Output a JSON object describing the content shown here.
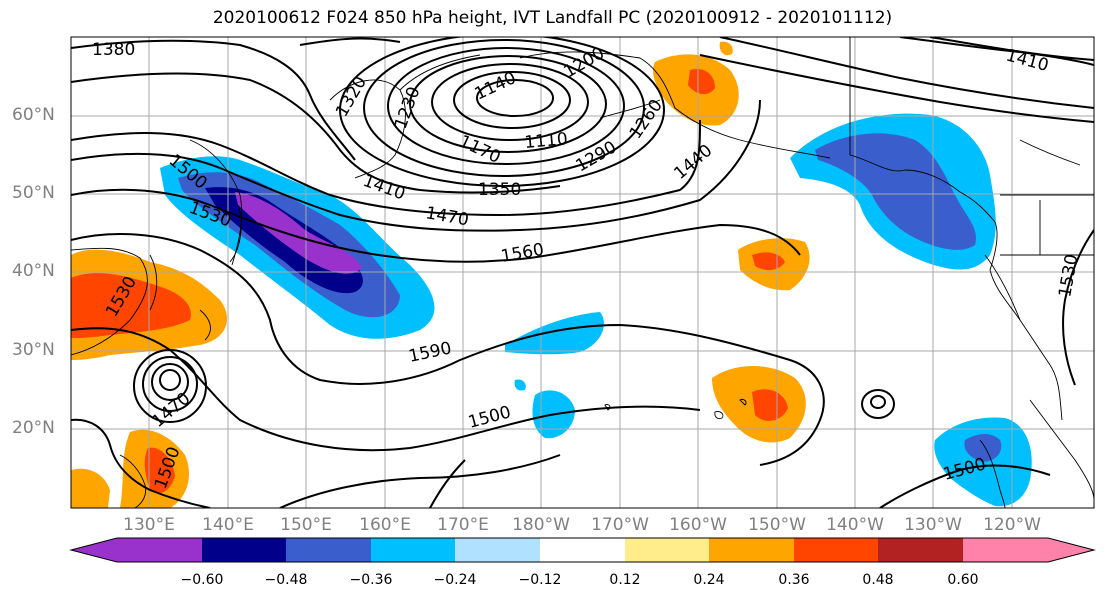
{
  "title": "2020100612 F024 850 hPa height, IVT Landfall PC (2020100912 - 2020101112)",
  "lat_labels": [
    "60°N",
    "50°N",
    "40°N",
    "30°N",
    "20°N"
  ],
  "lon_labels": [
    "130°E",
    "140°E",
    "150°E",
    "160°E",
    "170°E",
    "180°W",
    "170°W",
    "160°W",
    "150°W",
    "140°W",
    "130°W",
    "120°W"
  ],
  "contour_labels": [
    "1380",
    "1320",
    "1230",
    "1140",
    "1200",
    "1410",
    "1170",
    "1110",
    "1260",
    "1290",
    "1440",
    "1350",
    "1410",
    "1470",
    "1500",
    "1530",
    "1560",
    "1590",
    "1500",
    "1530",
    "1530",
    "1470",
    "1500",
    "1500"
  ],
  "colorbar": {
    "colors": [
      "#9932cc",
      "#00008b",
      "#3a5fcd",
      "#00bfff",
      "#b0e2ff",
      "#ffffff",
      "#ffec8b",
      "#ffa500",
      "#ff4500",
      "#b22222",
      "#ff82ab"
    ],
    "labels": [
      "−0.60",
      "−0.48",
      "−0.36",
      "−0.24",
      "−0.12",
      "0.12",
      "0.24",
      "0.36",
      "0.48",
      "0.60"
    ]
  }
}
